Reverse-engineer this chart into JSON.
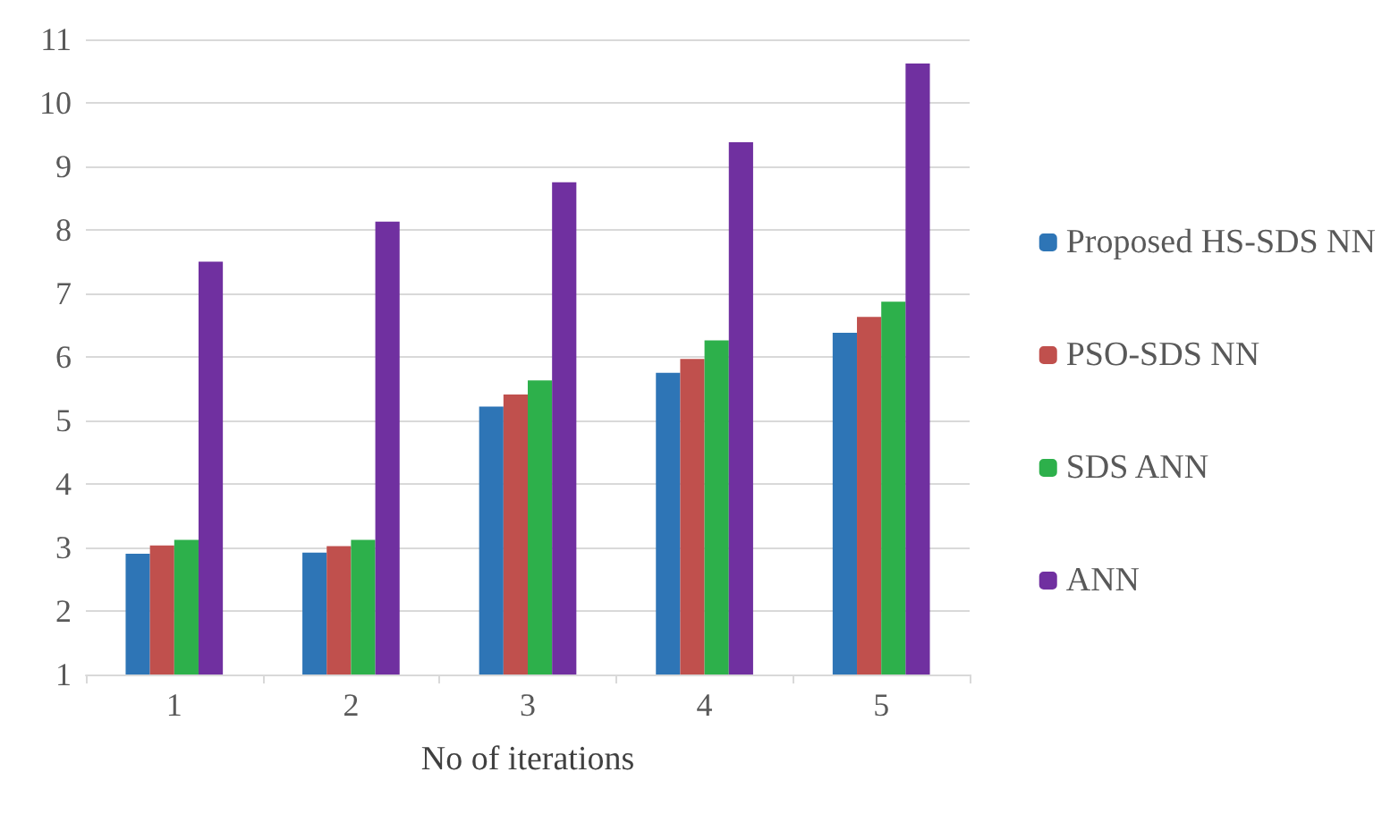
{
  "chart_data": {
    "type": "bar",
    "xlabel": "No of iterations",
    "categories": [
      "1",
      "2",
      "3",
      "4",
      "5"
    ],
    "series": [
      {
        "name": "Proposed HS-SDS NN",
        "color": "#2e75b6",
        "values": [
          2.9,
          2.92,
          5.22,
          5.75,
          6.38
        ]
      },
      {
        "name": "PSO-SDS NN",
        "color": "#c0504d",
        "values": [
          3.03,
          3.02,
          5.41,
          5.97,
          6.63
        ]
      },
      {
        "name": "SDS ANN",
        "color": "#2db04b",
        "values": [
          3.12,
          3.12,
          5.63,
          6.26,
          6.87
        ]
      },
      {
        "name": "ANN",
        "color": "#7030a0",
        "values": [
          7.5,
          8.13,
          8.75,
          9.38,
          10.62
        ]
      }
    ],
    "ylim": [
      1,
      11
    ],
    "yticks": [
      1,
      2,
      3,
      4,
      5,
      6,
      7,
      8,
      9,
      10,
      11
    ],
    "grid": "y",
    "legend": "right"
  }
}
